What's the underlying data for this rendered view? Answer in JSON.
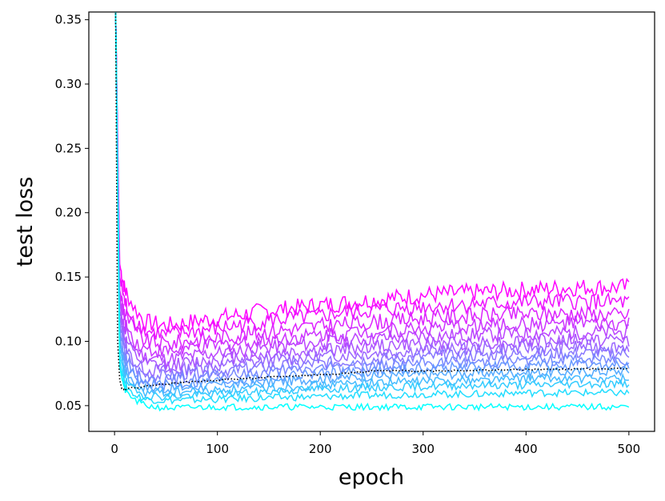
{
  "chart_data": {
    "type": "line",
    "title": "",
    "xlabel": "epoch",
    "ylabel": "test loss",
    "xlim": [
      -25,
      525
    ],
    "ylim": [
      0.03,
      0.356
    ],
    "xticks": [
      0,
      100,
      200,
      300,
      400,
      500
    ],
    "xtick_labels": [
      "0",
      "100",
      "200",
      "300",
      "400",
      "500"
    ],
    "yticks": [
      0.05,
      0.1,
      0.15,
      0.2,
      0.25,
      0.3,
      0.35
    ],
    "ytick_labels": [
      "0.05",
      "0.10",
      "0.15",
      "0.20",
      "0.25",
      "0.30",
      "0.35"
    ],
    "grid": false,
    "legend": "none",
    "colormap": "cool (cyan to magenta)",
    "series": [
      {
        "color": "#ff00ff",
        "style": "solid",
        "x": [
          1,
          5,
          10,
          20,
          30,
          50,
          100,
          150,
          200,
          250,
          300,
          350,
          400,
          450,
          500
        ],
        "y": [
          0.36,
          0.16,
          0.14,
          0.125,
          0.115,
          0.112,
          0.118,
          0.124,
          0.128,
          0.132,
          0.136,
          0.138,
          0.14,
          0.142,
          0.142
        ]
      },
      {
        "color": "#ee11ff",
        "style": "solid",
        "x": [
          1,
          5,
          10,
          20,
          30,
          50,
          100,
          150,
          200,
          250,
          300,
          350,
          400,
          450,
          500
        ],
        "y": [
          0.36,
          0.15,
          0.13,
          0.116,
          0.108,
          0.105,
          0.11,
          0.116,
          0.12,
          0.124,
          0.127,
          0.129,
          0.13,
          0.131,
          0.13
        ]
      },
      {
        "color": "#dd22ff",
        "style": "solid",
        "x": [
          1,
          5,
          10,
          20,
          30,
          50,
          100,
          150,
          200,
          250,
          300,
          350,
          400,
          450,
          500
        ],
        "y": [
          0.36,
          0.14,
          0.122,
          0.108,
          0.1,
          0.098,
          0.103,
          0.108,
          0.112,
          0.115,
          0.118,
          0.12,
          0.121,
          0.122,
          0.12
        ]
      },
      {
        "color": "#cc33ff",
        "style": "solid",
        "x": [
          1,
          5,
          10,
          20,
          30,
          50,
          100,
          150,
          200,
          250,
          300,
          350,
          400,
          450,
          500
        ],
        "y": [
          0.36,
          0.135,
          0.115,
          0.1,
          0.094,
          0.092,
          0.097,
          0.101,
          0.105,
          0.108,
          0.11,
          0.112,
          0.113,
          0.114,
          0.113
        ]
      },
      {
        "color": "#bb44ff",
        "style": "solid",
        "x": [
          1,
          5,
          10,
          20,
          30,
          50,
          100,
          150,
          200,
          250,
          300,
          350,
          400,
          450,
          500
        ],
        "y": [
          0.36,
          0.13,
          0.108,
          0.094,
          0.088,
          0.086,
          0.091,
          0.095,
          0.099,
          0.102,
          0.104,
          0.105,
          0.106,
          0.107,
          0.107
        ]
      },
      {
        "color": "#aa55ff",
        "style": "solid",
        "x": [
          1,
          5,
          10,
          20,
          30,
          50,
          100,
          150,
          200,
          250,
          300,
          350,
          400,
          450,
          500
        ],
        "y": [
          0.36,
          0.125,
          0.102,
          0.088,
          0.082,
          0.081,
          0.086,
          0.09,
          0.093,
          0.096,
          0.098,
          0.099,
          0.1,
          0.101,
          0.101
        ]
      },
      {
        "color": "#9966ff",
        "style": "solid",
        "x": [
          1,
          5,
          10,
          20,
          30,
          50,
          100,
          150,
          200,
          250,
          300,
          350,
          400,
          450,
          500
        ],
        "y": [
          0.36,
          0.12,
          0.097,
          0.083,
          0.078,
          0.077,
          0.081,
          0.085,
          0.088,
          0.091,
          0.093,
          0.094,
          0.095,
          0.096,
          0.096
        ]
      },
      {
        "color": "#8877ff",
        "style": "solid",
        "x": [
          1,
          5,
          10,
          20,
          30,
          50,
          100,
          150,
          200,
          250,
          300,
          350,
          400,
          450,
          500
        ],
        "y": [
          0.36,
          0.115,
          0.092,
          0.079,
          0.074,
          0.073,
          0.077,
          0.08,
          0.083,
          0.086,
          0.088,
          0.089,
          0.09,
          0.091,
          0.091
        ]
      },
      {
        "color": "#7788ff",
        "style": "solid",
        "x": [
          1,
          5,
          10,
          20,
          30,
          50,
          100,
          150,
          200,
          250,
          300,
          350,
          400,
          450,
          500
        ],
        "y": [
          0.36,
          0.11,
          0.087,
          0.075,
          0.07,
          0.07,
          0.073,
          0.076,
          0.079,
          0.081,
          0.083,
          0.084,
          0.085,
          0.086,
          0.086
        ]
      },
      {
        "color": "#6699ff",
        "style": "solid",
        "x": [
          1,
          5,
          10,
          20,
          30,
          50,
          100,
          150,
          200,
          250,
          300,
          350,
          400,
          450,
          500
        ],
        "y": [
          0.36,
          0.105,
          0.082,
          0.071,
          0.067,
          0.066,
          0.069,
          0.072,
          0.075,
          0.077,
          0.079,
          0.08,
          0.081,
          0.081,
          0.081
        ]
      },
      {
        "color": "#55aaff",
        "style": "solid",
        "x": [
          1,
          5,
          10,
          20,
          30,
          50,
          100,
          150,
          200,
          250,
          300,
          350,
          400,
          450,
          500
        ],
        "y": [
          0.36,
          0.1,
          0.078,
          0.068,
          0.064,
          0.063,
          0.066,
          0.068,
          0.071,
          0.073,
          0.074,
          0.075,
          0.076,
          0.076,
          0.077
        ]
      },
      {
        "color": "#44bbff",
        "style": "solid",
        "x": [
          1,
          5,
          10,
          20,
          30,
          50,
          100,
          150,
          200,
          250,
          300,
          350,
          400,
          450,
          500
        ],
        "y": [
          0.36,
          0.095,
          0.074,
          0.064,
          0.06,
          0.06,
          0.062,
          0.064,
          0.066,
          0.068,
          0.069,
          0.07,
          0.071,
          0.071,
          0.071
        ]
      },
      {
        "color": "#33ccff",
        "style": "solid",
        "x": [
          1,
          5,
          10,
          20,
          30,
          50,
          100,
          150,
          200,
          250,
          300,
          350,
          400,
          450,
          500
        ],
        "y": [
          0.36,
          0.09,
          0.07,
          0.061,
          0.058,
          0.057,
          0.059,
          0.061,
          0.063,
          0.064,
          0.065,
          0.066,
          0.066,
          0.067,
          0.067
        ]
      },
      {
        "color": "#22ddff",
        "style": "solid",
        "x": [
          1,
          5,
          10,
          20,
          30,
          50,
          100,
          150,
          200,
          250,
          300,
          350,
          400,
          450,
          500
        ],
        "y": [
          0.36,
          0.085,
          0.066,
          0.058,
          0.055,
          0.054,
          0.055,
          0.056,
          0.057,
          0.058,
          0.059,
          0.059,
          0.06,
          0.06,
          0.06
        ]
      },
      {
        "color": "#00ffff",
        "style": "solid",
        "x": [
          1,
          5,
          10,
          20,
          30,
          50,
          100,
          150,
          200,
          250,
          300,
          350,
          400,
          450,
          500
        ],
        "y": [
          0.36,
          0.08,
          0.062,
          0.054,
          0.05,
          0.048,
          0.049,
          0.049,
          0.049,
          0.049,
          0.049,
          0.049,
          0.049,
          0.049,
          0.049
        ]
      },
      {
        "color": "#000000",
        "style": "dotted",
        "x": [
          1,
          3,
          5,
          7,
          10,
          20,
          50,
          100,
          150,
          200,
          240,
          250,
          300,
          400,
          500
        ],
        "y": [
          0.36,
          0.1,
          0.07,
          0.064,
          0.063,
          0.064,
          0.067,
          0.07,
          0.072,
          0.074,
          0.076,
          0.077,
          0.077,
          0.078,
          0.079
        ]
      }
    ]
  }
}
